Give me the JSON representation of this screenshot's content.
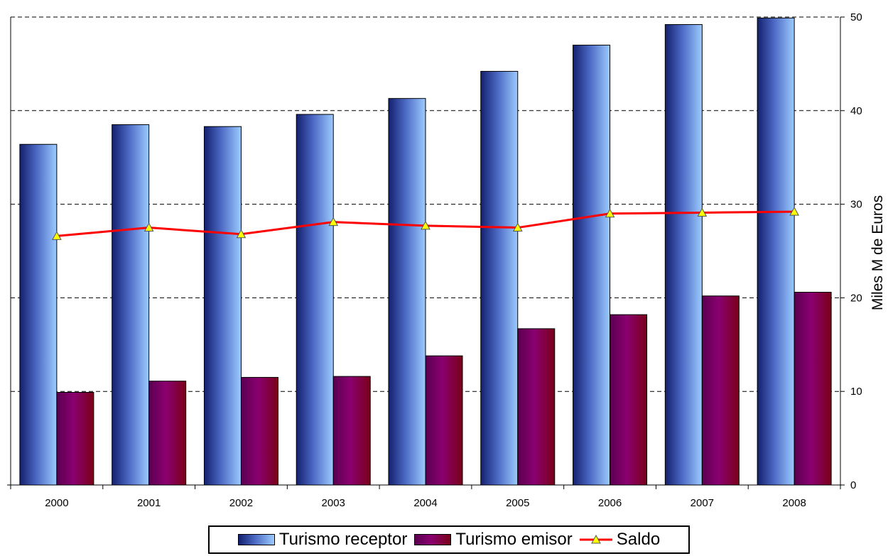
{
  "chart_data": {
    "type": "bar",
    "categories": [
      "2000",
      "2001",
      "2002",
      "2003",
      "2004",
      "2005",
      "2006",
      "2007",
      "2008"
    ],
    "series": [
      {
        "name": "Turismo receptor",
        "type": "bar",
        "values": [
          36.4,
          38.5,
          38.3,
          39.6,
          41.3,
          44.2,
          47.0,
          49.2,
          49.9
        ]
      },
      {
        "name": "Turismo emisor",
        "type": "bar",
        "values": [
          9.9,
          11.1,
          11.5,
          11.6,
          13.8,
          16.7,
          18.2,
          20.2,
          20.6
        ]
      },
      {
        "name": "Saldo",
        "type": "line",
        "values": [
          26.6,
          27.5,
          26.8,
          28.1,
          27.7,
          27.5,
          29.0,
          29.1,
          29.2
        ]
      }
    ],
    "ylabel": "Miles M de Euros",
    "ylim": [
      0,
      50
    ],
    "yticks": [
      0,
      10,
      20,
      30,
      40,
      50
    ],
    "y_axis_position": "right",
    "grid": "horizontal dashed",
    "legend_position": "bottom"
  },
  "colors": {
    "receptor_dark": "#14206e",
    "receptor_light": "#9ccbff",
    "emisor_dark": "#5a0050",
    "emisor_mid": "#8a0070",
    "emisor_red": "#7a0018",
    "saldo_line": "#ff0000",
    "saldo_marker": "#ffff00"
  },
  "legend": {
    "receptor": "Turismo receptor",
    "emisor": "Turismo emisor",
    "saldo": "Saldo"
  }
}
